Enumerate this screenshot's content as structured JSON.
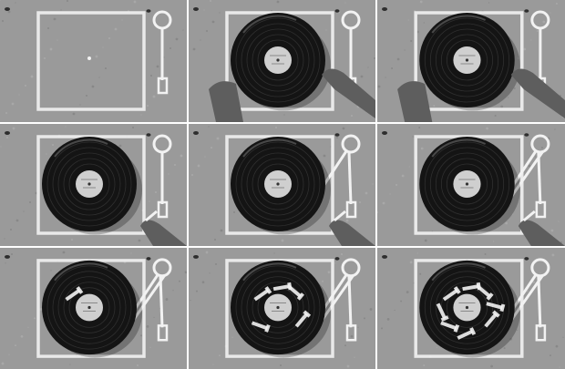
{
  "photo": {
    "description_free": true,
    "panels": [
      {
        "stage": 1,
        "record": false,
        "arm_lines": 1,
        "hands": 0,
        "stickers": 0
      },
      {
        "stage": 2,
        "record": true,
        "arm_lines": 1,
        "hands": 2,
        "stickers": 0
      },
      {
        "stage": 3,
        "record": true,
        "arm_lines": 1,
        "hands": 2,
        "stickers": 0
      },
      {
        "stage": 4,
        "record": true,
        "arm_lines": 1,
        "hands": 1,
        "stickers": 0
      },
      {
        "stage": 5,
        "record": true,
        "arm_lines": 2,
        "hands": 1,
        "stickers": 0
      },
      {
        "stage": 6,
        "record": true,
        "arm_lines": 3,
        "hands": 1,
        "stickers": 0
      },
      {
        "stage": 7,
        "record": true,
        "arm_lines": 3,
        "hands": 0,
        "stickers": 1
      },
      {
        "stage": 8,
        "record": true,
        "arm_lines": 3,
        "hands": 0,
        "stickers": 5
      },
      {
        "stage": 9,
        "record": true,
        "arm_lines": 3,
        "hands": 0,
        "stickers": 8
      }
    ],
    "colors": {
      "pavement": "#9a9a9a",
      "chalk": "#f2f2f2",
      "vinyl": "#141414",
      "label": "#cfcfcf",
      "skin": "#5e5e5e"
    }
  }
}
